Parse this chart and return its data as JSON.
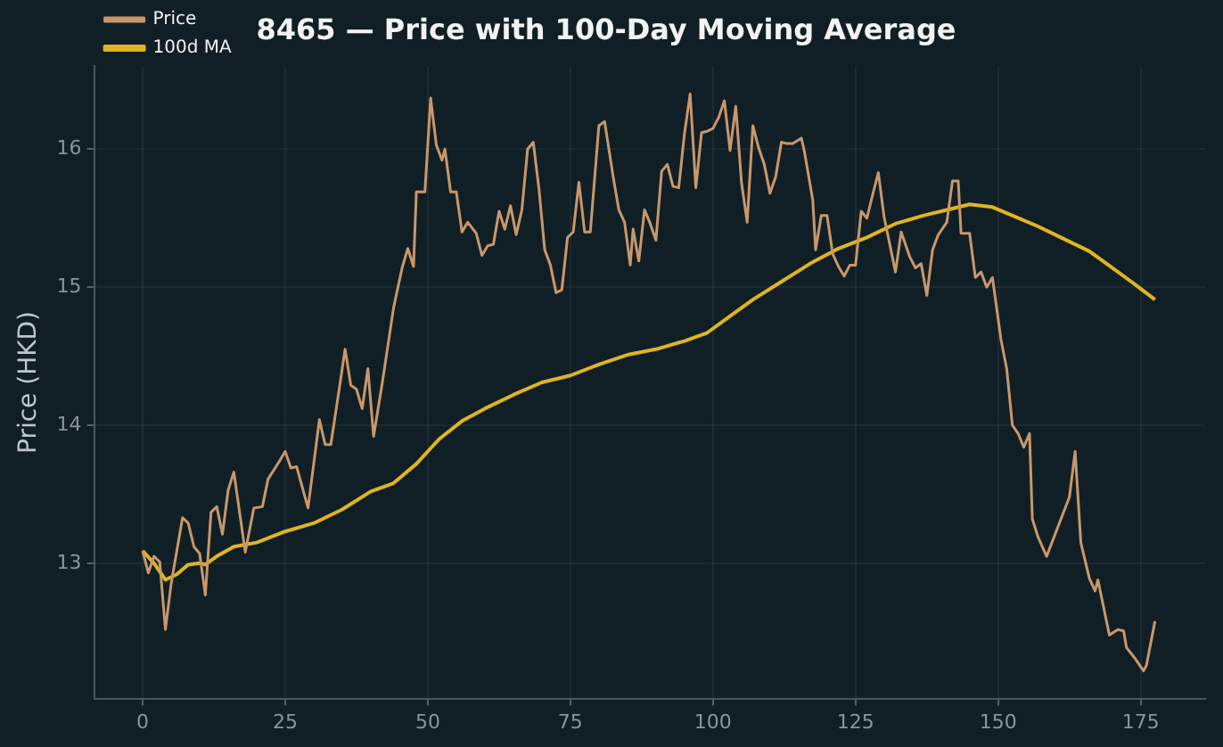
{
  "chart_data": {
    "type": "line",
    "title": "8465 — Price with 100-Day Moving Average",
    "ylabel": "Price (HKD)",
    "xlim": [
      -8.5,
      186.3
    ],
    "xticks": [
      0,
      25,
      50,
      75,
      100,
      125,
      150,
      175
    ],
    "ylim": [
      12.02,
      16.6
    ],
    "yticks": [
      13,
      14,
      15,
      16
    ],
    "grid": true,
    "legend": "top left",
    "marker": "none",
    "line_style": "solid",
    "series": [
      {
        "name": "Price",
        "color": "#c9976a",
        "x": [
          0,
          1,
          2,
          3,
          4,
          5,
          7,
          8,
          9,
          10,
          11,
          12,
          13,
          14,
          15,
          16,
          18,
          19.5,
          21,
          22,
          24,
          25,
          26,
          27,
          29,
          31,
          32,
          33,
          34.5,
          35.5,
          36.5,
          37.5,
          38.5,
          39.5,
          40.5,
          42,
          44,
          45.5,
          46.5,
          47.5,
          48,
          49.5,
          50.5,
          51.5,
          52.5,
          53,
          54,
          55,
          56,
          57,
          58.5,
          59.5,
          60.5,
          61.5,
          62.5,
          63.5,
          64.5,
          65.5,
          66.5,
          67.5,
          68.5,
          69.5,
          70.5,
          71.5,
          72.5,
          73.5,
          74.5,
          75.5,
          76.5,
          77.5,
          78.5,
          80,
          81,
          82.5,
          83.5,
          84.5,
          85.5,
          86,
          87,
          88,
          89,
          90,
          91,
          92,
          93,
          94,
          95,
          96,
          97,
          98,
          99,
          100,
          101,
          102,
          103,
          104,
          105,
          106,
          107,
          108,
          109,
          110,
          111,
          112,
          113,
          114,
          115.5,
          116,
          117.5,
          118,
          119,
          120,
          121,
          122,
          123,
          124,
          125,
          126,
          127,
          128,
          129,
          130,
          132,
          133,
          134.5,
          135.5,
          136.5,
          137.5,
          138.5,
          139.5,
          141,
          142,
          143,
          143.5,
          145,
          146,
          147,
          148,
          149,
          150.5,
          151.5,
          152.5,
          153.5,
          154.5,
          155.5,
          156,
          157,
          158.5,
          162.5,
          163.5,
          164.5,
          166,
          167,
          167.5,
          169.5,
          171,
          172,
          172.5,
          174,
          175.5,
          176,
          177.5
        ],
        "values": [
          13.09,
          12.93,
          13.05,
          13.01,
          12.52,
          12.85,
          13.33,
          13.29,
          13.12,
          13.07,
          12.77,
          13.37,
          13.41,
          13.21,
          13.53,
          13.66,
          13.08,
          13.4,
          13.41,
          13.61,
          13.74,
          13.81,
          13.69,
          13.7,
          13.4,
          14.04,
          13.86,
          13.86,
          14.27,
          14.55,
          14.29,
          14.26,
          14.12,
          14.41,
          13.92,
          14.3,
          14.85,
          15.14,
          15.28,
          15.15,
          15.69,
          15.69,
          16.37,
          16.03,
          15.92,
          16.0,
          15.69,
          15.69,
          15.4,
          15.47,
          15.39,
          15.23,
          15.3,
          15.31,
          15.55,
          15.42,
          15.59,
          15.38,
          15.56,
          16.0,
          16.05,
          15.71,
          15.27,
          15.16,
          14.96,
          14.98,
          15.36,
          15.4,
          15.76,
          15.4,
          15.4,
          16.17,
          16.2,
          15.8,
          15.56,
          15.47,
          15.16,
          15.42,
          15.19,
          15.56,
          15.46,
          15.34,
          15.84,
          15.89,
          15.73,
          15.72,
          16.11,
          16.4,
          15.72,
          16.12,
          16.13,
          16.15,
          16.23,
          16.35,
          15.99,
          16.31,
          15.76,
          15.47,
          16.17,
          16.01,
          15.89,
          15.68,
          15.8,
          16.05,
          16.04,
          16.04,
          16.08,
          15.99,
          15.63,
          15.27,
          15.52,
          15.52,
          15.24,
          15.15,
          15.08,
          15.16,
          15.16,
          15.55,
          15.5,
          15.67,
          15.83,
          15.51,
          15.11,
          15.4,
          15.22,
          15.14,
          15.17,
          14.94,
          15.27,
          15.38,
          15.47,
          15.77,
          15.77,
          15.39,
          15.39,
          15.07,
          15.11,
          15.0,
          15.07,
          14.62,
          14.41,
          14.0,
          13.94,
          13.84,
          13.94,
          13.32,
          13.19,
          13.05,
          13.48,
          13.81,
          13.15,
          12.89,
          12.8,
          12.88,
          12.48,
          12.52,
          12.51,
          12.39,
          12.31,
          12.22,
          12.26,
          12.58
        ]
      },
      {
        "name": "100d MA",
        "color": "#e0b422",
        "x": [
          0,
          2,
          4,
          6,
          8,
          10,
          11,
          13,
          16,
          20,
          25,
          30,
          35,
          40,
          44,
          48,
          52,
          56,
          60,
          65,
          70,
          75,
          80,
          85,
          90,
          95,
          99,
          103,
          107,
          112,
          117,
          122,
          127,
          132,
          137,
          141,
          145,
          149,
          153,
          157,
          161,
          166,
          170,
          174,
          177.5
        ],
        "values": [
          13.09,
          13.0,
          12.88,
          12.92,
          12.99,
          13.0,
          12.99,
          13.05,
          13.12,
          13.15,
          13.23,
          13.29,
          13.39,
          13.52,
          13.58,
          13.72,
          13.9,
          14.03,
          14.12,
          14.22,
          14.31,
          14.36,
          14.44,
          14.51,
          14.55,
          14.61,
          14.67,
          14.79,
          14.91,
          15.04,
          15.17,
          15.28,
          15.36,
          15.46,
          15.52,
          15.56,
          15.6,
          15.58,
          15.51,
          15.44,
          15.36,
          15.26,
          15.14,
          15.02,
          14.91
        ]
      }
    ]
  }
}
